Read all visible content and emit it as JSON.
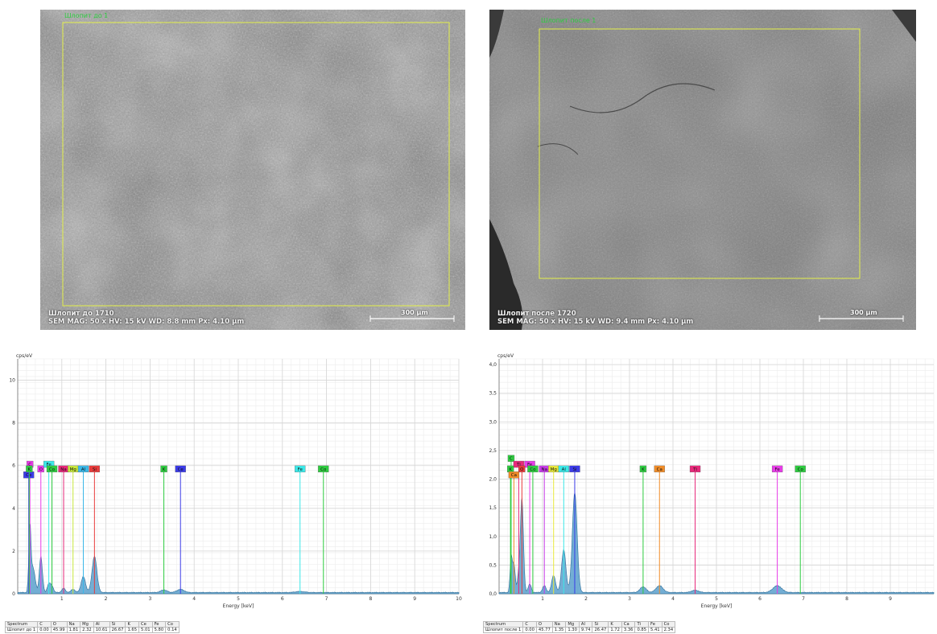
{
  "sem_images": [
    {
      "roi_label": "Шлопит до 1",
      "caption_line1": "Шлопит до 1710",
      "caption_line2": "SEM   MAG: 50 x   HV: 15 kV   WD: 8.8 mm   Px: 4.10 µm",
      "scale_label": "300 µm",
      "tone": "bright"
    },
    {
      "roi_label": "Шлопит после 1",
      "caption_line1": "Шлопит после 1720",
      "caption_line2": "SEM   MAG: 50 x   HV: 15 kV   WD: 9.4 mm   Px: 4.10 µm",
      "scale_label": "300 µm",
      "tone": "dark"
    }
  ],
  "chart_data": [
    {
      "type": "line",
      "ylabel": "cps/eV",
      "xlabel": "Energy [keV]",
      "xlim": [
        0,
        10
      ],
      "ylim": [
        0,
        11
      ],
      "x_ticks": [
        1,
        2,
        3,
        4,
        5,
        6,
        7,
        8,
        9,
        10
      ],
      "y_ticks": [
        0,
        2,
        4,
        6,
        8,
        10
      ],
      "y_tick_labels": [
        "0",
        "2",
        "4",
        "6",
        "8",
        "10"
      ],
      "grid": true,
      "spectrum_peaks": [
        {
          "x": 0.277,
          "y": 3.2,
          "w": 0.025
        },
        {
          "x": 0.341,
          "y": 1.0,
          "w": 0.03
        },
        {
          "x": 0.392,
          "y": 0.5,
          "w": 0.03
        },
        {
          "x": 0.525,
          "y": 1.7,
          "w": 0.035
        },
        {
          "x": 0.705,
          "y": 0.4,
          "w": 0.035
        },
        {
          "x": 0.776,
          "y": 0.3,
          "w": 0.035
        },
        {
          "x": 1.041,
          "y": 0.2,
          "w": 0.04
        },
        {
          "x": 1.254,
          "y": 0.15,
          "w": 0.045
        },
        {
          "x": 1.487,
          "y": 0.75,
          "w": 0.05
        },
        {
          "x": 1.74,
          "y": 1.7,
          "w": 0.055
        },
        {
          "x": 3.313,
          "y": 0.12,
          "w": 0.07
        },
        {
          "x": 3.69,
          "y": 0.15,
          "w": 0.08
        },
        {
          "x": 6.4,
          "y": 0.05,
          "w": 0.1
        }
      ],
      "element_lines": [
        {
          "label": "C",
          "x": 0.277,
          "row": 1,
          "color": "#e83be8"
        },
        {
          "label": "Ce",
          "x": 0.25,
          "row": 3,
          "color": "#3b3be8"
        },
        {
          "label": "K",
          "x": 0.262,
          "row": 2,
          "color": "#2ecc40"
        },
        {
          "label": "O",
          "x": 0.525,
          "row": 2,
          "color": "#e83be8"
        },
        {
          "label": "Fe",
          "x": 0.705,
          "row": 1,
          "color": "#3be8e8"
        },
        {
          "label": "Co",
          "x": 0.776,
          "row": 2,
          "color": "#2ecc40"
        },
        {
          "label": "Na",
          "x": 1.041,
          "row": 2,
          "color": "#e8287a"
        },
        {
          "label": "Mg",
          "x": 1.254,
          "row": 2,
          "color": "#c8e83b"
        },
        {
          "label": "Al",
          "x": 1.487,
          "row": 2,
          "color": "#3bb8e8"
        },
        {
          "label": "Si",
          "x": 1.74,
          "row": 2,
          "color": "#e83b3b"
        },
        {
          "label": "K",
          "x": 3.313,
          "row": 2,
          "color": "#2ecc40"
        },
        {
          "label": "Ce",
          "x": 3.69,
          "row": 2,
          "color": "#3b3be8"
        },
        {
          "label": "Fe",
          "x": 6.4,
          "row": 2,
          "color": "#3be8e8"
        },
        {
          "label": "Co",
          "x": 6.93,
          "row": 2,
          "color": "#2ecc40"
        }
      ],
      "table": {
        "headers": [
          "Spectrum",
          "C",
          "O",
          "Na",
          "Mg",
          "Al",
          "Si",
          "K",
          "Ce",
          "Fe",
          "Co"
        ],
        "row": [
          "Шлопит до 1",
          "0.00",
          "45.99",
          "1.81",
          "2.32",
          "10.61",
          "26.67",
          "1.65",
          "5.01",
          "5.80",
          "0.14"
        ]
      }
    },
    {
      "type": "line",
      "ylabel": "cps/eV",
      "xlabel": "Energy [keV]",
      "xlim": [
        0,
        10
      ],
      "ylim": [
        0,
        4.1
      ],
      "x_ticks": [
        1,
        2,
        3,
        4,
        5,
        6,
        7,
        8,
        9
      ],
      "y_ticks": [
        0,
        0.5,
        1.0,
        1.5,
        2.0,
        2.5,
        3.0,
        3.5,
        4.0
      ],
      "y_tick_labels": [
        "0,0",
        "0,5",
        "1,0",
        "1,5",
        "2,0",
        "2,5",
        "3,0",
        "3,5",
        "4,0"
      ],
      "grid": true,
      "spectrum_peaks": [
        {
          "x": 0.277,
          "y": 0.6,
          "w": 0.025
        },
        {
          "x": 0.341,
          "y": 0.5,
          "w": 0.03
        },
        {
          "x": 0.452,
          "y": 0.3,
          "w": 0.03
        },
        {
          "x": 0.525,
          "y": 1.65,
          "w": 0.035
        },
        {
          "x": 0.705,
          "y": 0.15,
          "w": 0.035
        },
        {
          "x": 1.041,
          "y": 0.12,
          "w": 0.04
        },
        {
          "x": 1.254,
          "y": 0.3,
          "w": 0.045
        },
        {
          "x": 1.487,
          "y": 0.75,
          "w": 0.05
        },
        {
          "x": 1.74,
          "y": 1.75,
          "w": 0.055
        },
        {
          "x": 3.313,
          "y": 0.1,
          "w": 0.07
        },
        {
          "x": 3.69,
          "y": 0.12,
          "w": 0.08
        },
        {
          "x": 4.51,
          "y": 0.04,
          "w": 0.08
        },
        {
          "x": 6.4,
          "y": 0.12,
          "w": 0.1
        }
      ],
      "element_lines": [
        {
          "label": "C",
          "x": 0.277,
          "row": 0,
          "color": "#2ecc40"
        },
        {
          "label": "Ti",
          "x": 0.452,
          "row": 1,
          "color": "#e8287a"
        },
        {
          "label": "Fe",
          "x": 0.705,
          "row": 1,
          "color": "#e83be8"
        },
        {
          "label": "K",
          "x": 0.262,
          "row": 2,
          "color": "#2ecc40"
        },
        {
          "label": "Ca",
          "x": 0.341,
          "row": 3,
          "color": "#f08c28"
        },
        {
          "label": "O",
          "x": 0.525,
          "row": 2,
          "color": "#e83b3b"
        },
        {
          "label": "Co",
          "x": 0.776,
          "row": 2,
          "color": "#2ecc40"
        },
        {
          "label": "Na",
          "x": 1.041,
          "row": 2,
          "color": "#c83be8"
        },
        {
          "label": "Mg",
          "x": 1.254,
          "row": 2,
          "color": "#e8e83b"
        },
        {
          "label": "Al",
          "x": 1.487,
          "row": 2,
          "color": "#3be8e8"
        },
        {
          "label": "Si",
          "x": 1.74,
          "row": 2,
          "color": "#3b3be8"
        },
        {
          "label": "K",
          "x": 3.313,
          "row": 2,
          "color": "#2ecc40"
        },
        {
          "label": "Ca",
          "x": 3.69,
          "row": 2,
          "color": "#f08c28"
        },
        {
          "label": "Ti",
          "x": 4.51,
          "row": 2,
          "color": "#e8287a"
        },
        {
          "label": "Fe",
          "x": 6.4,
          "row": 2,
          "color": "#e83be8"
        },
        {
          "label": "Co",
          "x": 6.93,
          "row": 2,
          "color": "#2ecc40"
        }
      ],
      "table": {
        "headers": [
          "Spectrum",
          "C",
          "O",
          "Na",
          "Mg",
          "Al",
          "Si",
          "K",
          "Ca",
          "Ti",
          "Fe",
          "Co"
        ],
        "row": [
          "Шлопит после 1",
          "0.00",
          "45.77",
          "1.35",
          "1.30",
          "9.74",
          "26.47",
          "1.72",
          "3.36",
          "0.85",
          "5.41",
          "2.34"
        ]
      }
    }
  ]
}
